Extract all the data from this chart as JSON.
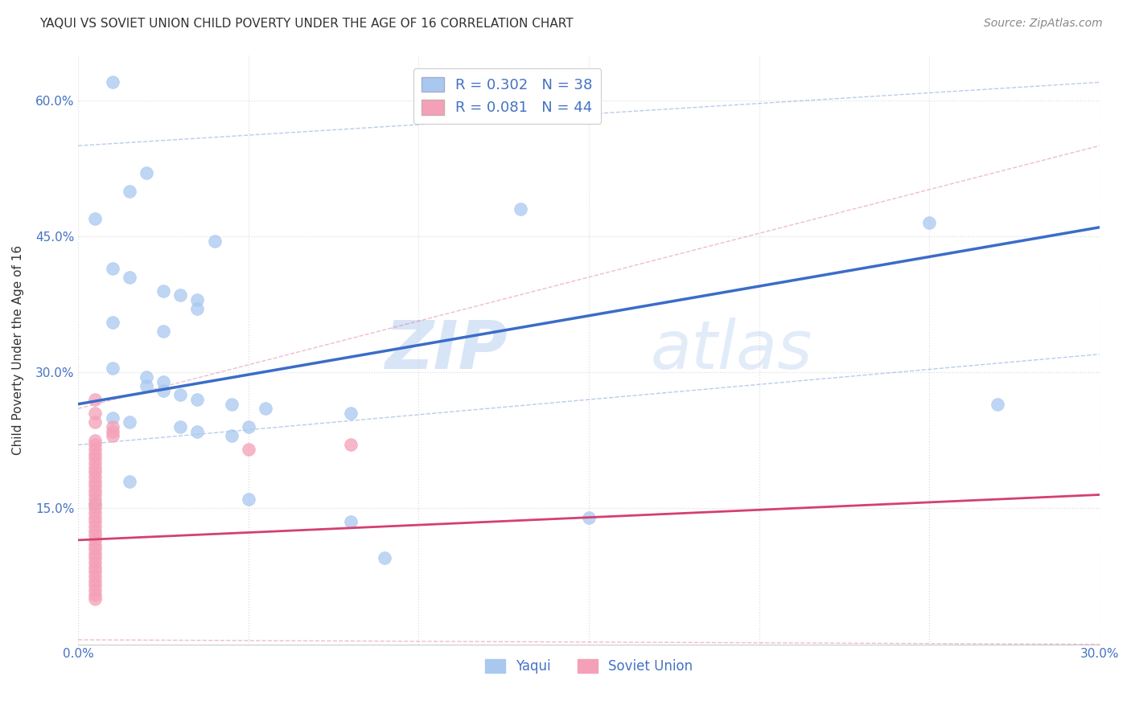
{
  "title": "YAQUI VS SOVIET UNION CHILD POVERTY UNDER THE AGE OF 16 CORRELATION CHART",
  "source": "Source: ZipAtlas.com",
  "ylabel": "Child Poverty Under the Age of 16",
  "xlim": [
    0.0,
    30.0
  ],
  "ylim": [
    0.0,
    65.0
  ],
  "x_ticks": [
    0.0,
    5.0,
    10.0,
    15.0,
    20.0,
    25.0,
    30.0
  ],
  "y_ticks": [
    0.0,
    15.0,
    30.0,
    45.0,
    60.0
  ],
  "yaqui_color": "#A8C8F0",
  "soviet_color": "#F4A0B8",
  "yaqui_line_color": "#3B6CC8",
  "soviet_line_color": "#D44070",
  "background_color": "#FFFFFF",
  "grid_color": "#DDDDDD",
  "R_yaqui": 0.302,
  "N_yaqui": 38,
  "R_soviet": 0.081,
  "N_soviet": 44,
  "legend_label_yaqui": "R = 0.302   N = 38",
  "legend_label_soviet": "R = 0.081   N = 44",
  "watermark_zip": "ZIP",
  "watermark_atlas": "atlas",
  "yaqui_points": [
    [
      1.0,
      62.0
    ],
    [
      2.0,
      52.0
    ],
    [
      1.5,
      50.0
    ],
    [
      0.5,
      47.0
    ],
    [
      4.0,
      44.5
    ],
    [
      1.0,
      41.5
    ],
    [
      1.5,
      40.5
    ],
    [
      2.5,
      39.0
    ],
    [
      3.0,
      38.5
    ],
    [
      3.5,
      38.0
    ],
    [
      3.5,
      37.0
    ],
    [
      1.0,
      35.5
    ],
    [
      2.5,
      34.5
    ],
    [
      1.0,
      30.5
    ],
    [
      2.0,
      29.5
    ],
    [
      2.5,
      29.0
    ],
    [
      2.0,
      28.5
    ],
    [
      2.5,
      28.0
    ],
    [
      3.0,
      27.5
    ],
    [
      3.5,
      27.0
    ],
    [
      4.5,
      26.5
    ],
    [
      5.5,
      26.0
    ],
    [
      8.0,
      25.5
    ],
    [
      1.0,
      25.0
    ],
    [
      1.5,
      24.5
    ],
    [
      3.0,
      24.0
    ],
    [
      3.5,
      23.5
    ],
    [
      4.5,
      23.0
    ],
    [
      1.5,
      18.0
    ],
    [
      5.0,
      16.0
    ],
    [
      0.5,
      15.5
    ],
    [
      15.0,
      14.0
    ],
    [
      8.0,
      13.5
    ],
    [
      13.0,
      48.0
    ],
    [
      25.0,
      46.5
    ],
    [
      27.0,
      26.5
    ],
    [
      9.0,
      9.5
    ],
    [
      5.0,
      24.0
    ]
  ],
  "soviet_points": [
    [
      0.5,
      27.0
    ],
    [
      0.5,
      25.5
    ],
    [
      0.5,
      24.5
    ],
    [
      1.0,
      24.0
    ],
    [
      1.0,
      23.5
    ],
    [
      1.0,
      23.0
    ],
    [
      0.5,
      22.5
    ],
    [
      0.5,
      22.0
    ],
    [
      0.5,
      21.5
    ],
    [
      0.5,
      21.0
    ],
    [
      0.5,
      20.5
    ],
    [
      0.5,
      20.0
    ],
    [
      0.5,
      19.5
    ],
    [
      0.5,
      19.0
    ],
    [
      0.5,
      18.5
    ],
    [
      0.5,
      18.0
    ],
    [
      0.5,
      17.5
    ],
    [
      0.5,
      17.0
    ],
    [
      0.5,
      16.5
    ],
    [
      0.5,
      16.0
    ],
    [
      0.5,
      15.5
    ],
    [
      0.5,
      15.0
    ],
    [
      0.5,
      14.5
    ],
    [
      0.5,
      14.0
    ],
    [
      0.5,
      13.5
    ],
    [
      0.5,
      13.0
    ],
    [
      0.5,
      12.5
    ],
    [
      0.5,
      12.0
    ],
    [
      0.5,
      11.5
    ],
    [
      0.5,
      11.0
    ],
    [
      0.5,
      10.5
    ],
    [
      0.5,
      10.0
    ],
    [
      0.5,
      9.5
    ],
    [
      0.5,
      9.0
    ],
    [
      0.5,
      8.5
    ],
    [
      0.5,
      8.0
    ],
    [
      0.5,
      7.5
    ],
    [
      0.5,
      7.0
    ],
    [
      0.5,
      6.5
    ],
    [
      0.5,
      6.0
    ],
    [
      0.5,
      5.5
    ],
    [
      0.5,
      5.0
    ],
    [
      5.0,
      21.5
    ],
    [
      8.0,
      22.0
    ]
  ],
  "title_fontsize": 11,
  "axis_label_fontsize": 11,
  "tick_fontsize": 11,
  "legend_fontsize": 13,
  "source_fontsize": 10
}
